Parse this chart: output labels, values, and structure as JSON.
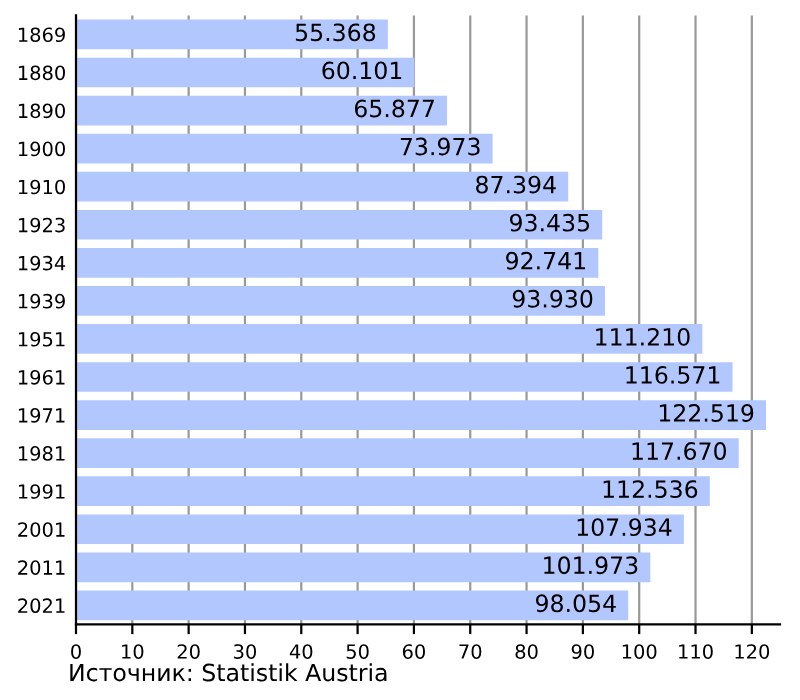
{
  "chart_data": {
    "type": "bar",
    "orientation": "horizontal",
    "categories": [
      "1869",
      "1880",
      "1890",
      "1900",
      "1910",
      "1923",
      "1934",
      "1939",
      "1951",
      "1961",
      "1971",
      "1981",
      "1991",
      "2001",
      "2011",
      "2021"
    ],
    "values": [
      55.368,
      60.101,
      65.877,
      73.973,
      87.394,
      93.435,
      92.741,
      93.93,
      111.21,
      116.571,
      122.519,
      117.67,
      112.536,
      107.934,
      101.973,
      98.054
    ],
    "value_labels": [
      "55.368",
      "60.101",
      "65.877",
      "73.973",
      "87.394",
      "93.435",
      "92.741",
      "93.930",
      "111.210",
      "116.571",
      "122.519",
      "117.670",
      "112.536",
      "107.934",
      "101.973",
      "98.054"
    ],
    "color": "#b3c7ff",
    "xlim": [
      0,
      125
    ],
    "xticks": [
      0,
      10,
      20,
      30,
      40,
      50,
      60,
      70,
      80,
      90,
      100,
      110,
      120
    ],
    "grid": "x",
    "legend": false,
    "annotations": [
      "Источник: Statistik Austria"
    ]
  }
}
